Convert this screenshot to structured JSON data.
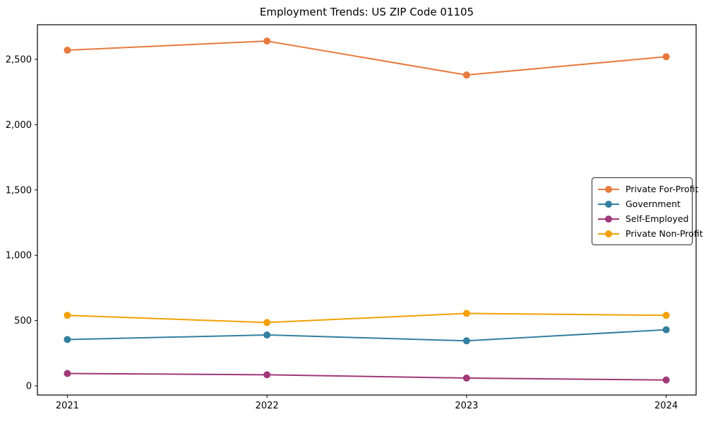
{
  "chart_data": {
    "type": "line",
    "title": "Employment Trends: US ZIP Code 01105",
    "x": [
      2021,
      2022,
      2023,
      2024
    ],
    "x_tick_labels": [
      "2021",
      "2022",
      "2023",
      "2024"
    ],
    "y_ticks": [
      0,
      500,
      1000,
      1500,
      2000,
      2500
    ],
    "y_tick_labels": [
      "0",
      "500",
      "1,000",
      "1,500",
      "2,000",
      "2,500"
    ],
    "xlim": [
      2020.85,
      2024.15
    ],
    "ylim": [
      -70,
      2765
    ],
    "grid": false,
    "legend_position": "center-right",
    "series": [
      {
        "name": "Private For-Profit",
        "color": "#e87a3f",
        "values": [
          2570,
          2640,
          2380,
          2520
        ]
      },
      {
        "name": "Government",
        "color": "#337fa0",
        "values": [
          355,
          390,
          345,
          430
        ]
      },
      {
        "name": "Self-Employed",
        "color": "#a03878",
        "values": [
          95,
          85,
          60,
          45
        ]
      },
      {
        "name": "Private Non-Profit",
        "color": "#f2a104",
        "values": [
          540,
          485,
          555,
          540
        ]
      }
    ],
    "axis_color": "#000000",
    "tick_label_color": "#000000"
  }
}
